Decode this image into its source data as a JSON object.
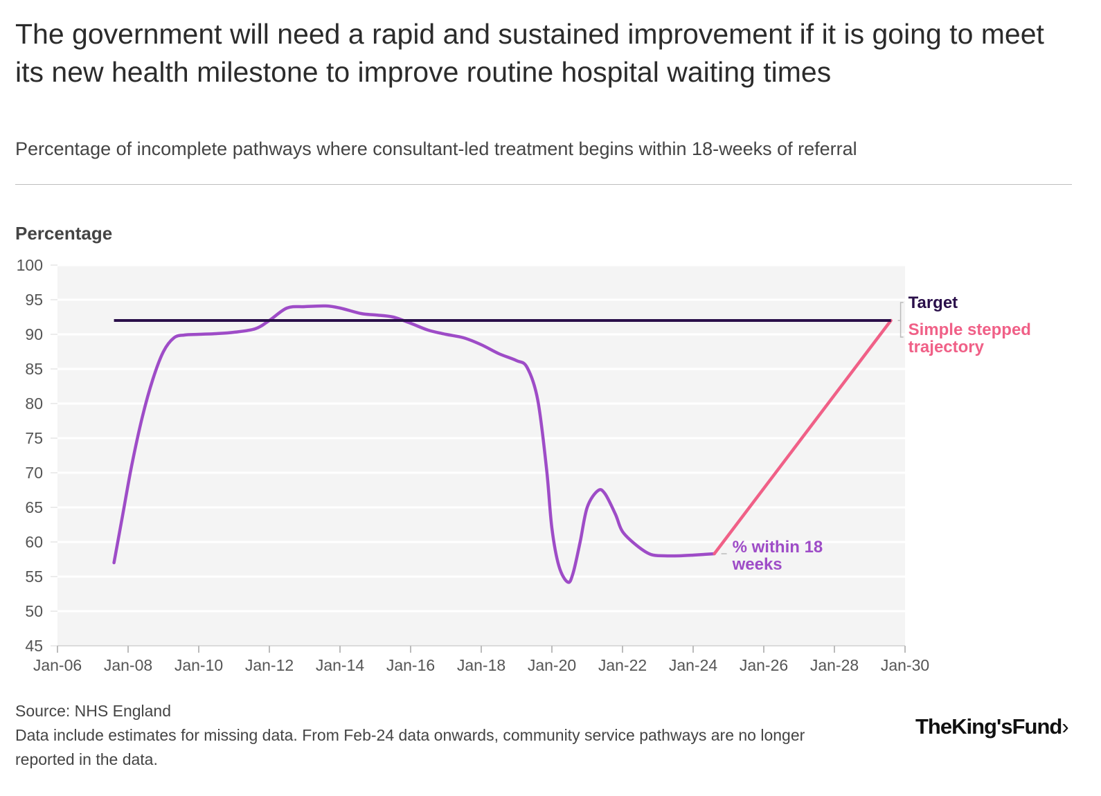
{
  "header": {
    "title": "The government will need a rapid and sustained improvement if it is going to meet its new health milestone to improve routine hospital waiting times",
    "subtitle": "Percentage of incomplete pathways where consultant-led treatment begins within 18-weeks of referral"
  },
  "colors": {
    "actual": "#9e4cc7",
    "trajectory": "#f06087",
    "target": "#2a0f4a",
    "plot_bg": "#f4f4f4",
    "grid": "#ffffff",
    "axis_text": "#555555"
  },
  "chart_data": {
    "type": "line",
    "title": "The government will need a rapid and sustained improvement if it is going to meet its new health milestone to improve routine hospital waiting times",
    "ylabel": "Percentage",
    "xlabel": "",
    "ylim": [
      45,
      100
    ],
    "yticks": [
      45,
      50,
      55,
      60,
      65,
      70,
      75,
      80,
      85,
      90,
      95,
      100
    ],
    "xlim": [
      2006,
      2030
    ],
    "xticks": [
      {
        "value": 2006,
        "label": "Jan-06"
      },
      {
        "value": 2008,
        "label": "Jan-08"
      },
      {
        "value": 2010,
        "label": "Jan-10"
      },
      {
        "value": 2012,
        "label": "Jan-12"
      },
      {
        "value": 2014,
        "label": "Jan-14"
      },
      {
        "value": 2016,
        "label": "Jan-16"
      },
      {
        "value": 2018,
        "label": "Jan-18"
      },
      {
        "value": 2020,
        "label": "Jan-20"
      },
      {
        "value": 2022,
        "label": "Jan-22"
      },
      {
        "value": 2024,
        "label": "Jan-24"
      },
      {
        "value": 2026,
        "label": "Jan-26"
      },
      {
        "value": 2028,
        "label": "Jan-28"
      },
      {
        "value": 2030,
        "label": "Jan-30"
      }
    ],
    "series": [
      {
        "name": "% within 18 weeks",
        "label": "% within 18 weeks",
        "x": [
          2007.6,
          2007.85,
          2008.1,
          2008.4,
          2008.7,
          2009.0,
          2009.3,
          2009.6,
          2010.0,
          2010.5,
          2011.0,
          2011.6,
          2012.0,
          2012.5,
          2013.0,
          2013.6,
          2014.0,
          2014.6,
          2015.0,
          2015.5,
          2016.0,
          2016.5,
          2017.0,
          2017.5,
          2018.0,
          2018.5,
          2019.0,
          2019.3,
          2019.6,
          2019.85,
          2020.0,
          2020.2,
          2020.45,
          2020.6,
          2020.8,
          2021.0,
          2021.3,
          2021.5,
          2021.8,
          2022.0,
          2022.4,
          2022.8,
          2023.2,
          2023.6,
          2024.0,
          2024.6
        ],
        "y": [
          57.0,
          64.0,
          71.0,
          78.0,
          83.5,
          87.5,
          89.5,
          89.9,
          90.0,
          90.1,
          90.3,
          90.8,
          92.0,
          93.8,
          94.0,
          94.1,
          93.8,
          93.0,
          92.8,
          92.5,
          91.6,
          90.6,
          90.0,
          89.5,
          88.5,
          87.2,
          86.2,
          85.2,
          80.5,
          70.5,
          62.0,
          56.5,
          54.2,
          55.5,
          60.0,
          65.0,
          67.4,
          67.0,
          64.0,
          61.5,
          59.5,
          58.2,
          58.0,
          58.0,
          58.1,
          58.3
        ]
      },
      {
        "name": "Simple stepped trajectory",
        "label": "Simple stepped trajectory",
        "x": [
          2024.6,
          2029.6
        ],
        "y": [
          58.3,
          92.0
        ]
      },
      {
        "name": "Target",
        "label": "Target",
        "x": [
          2007.6,
          2029.6
        ],
        "y": [
          92.0,
          92.0
        ]
      }
    ]
  },
  "footer": {
    "source": "Source: NHS England",
    "note": "Data include estimates for missing data. From Feb-24 data onwards, community service pathways are no longer reported in the data."
  },
  "logo": {
    "text": "TheKing'sFund",
    "chevron": "›"
  }
}
